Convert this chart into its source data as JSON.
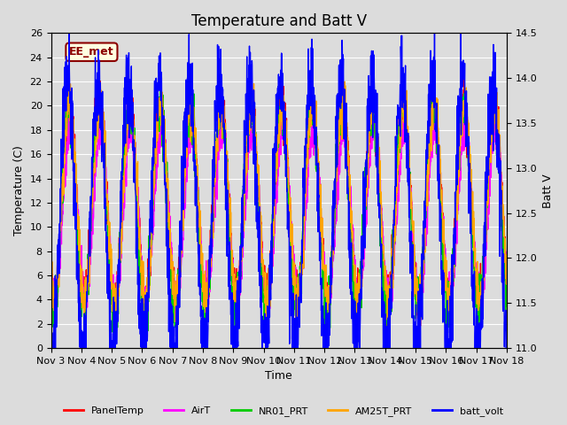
{
  "title": "Temperature and Batt V",
  "xlabel": "Time",
  "ylabel_left": "Temperature (C)",
  "ylabel_right": "Batt V",
  "ylim_left": [
    0,
    26
  ],
  "ylim_right": [
    11.0,
    14.5
  ],
  "yticks_left": [
    0,
    2,
    4,
    6,
    8,
    10,
    12,
    14,
    16,
    18,
    20,
    22,
    24,
    26
  ],
  "yticks_right": [
    11.0,
    11.5,
    12.0,
    12.5,
    13.0,
    13.5,
    14.0,
    14.5
  ],
  "xtick_labels": [
    "Nov 3",
    "Nov 4",
    "Nov 5",
    "Nov 6",
    "Nov 7",
    "Nov 8",
    "Nov 9",
    "Nov 10",
    "Nov 11",
    "Nov 12",
    "Nov 13",
    "Nov 14",
    "Nov 15",
    "Nov 16",
    "Nov 17",
    "Nov 18"
  ],
  "num_days": 15,
  "annotation_text": "EE_met",
  "annotation_color": "#8B0000",
  "annotation_bg": "#FFFFE0",
  "bg_color": "#DCDCDC",
  "series_colors": {
    "PanelTemp": "#FF0000",
    "AirT": "#FF00FF",
    "NR01_PRT": "#00CC00",
    "AM25T_PRT": "#FFA500",
    "batt_volt": "#0000FF"
  },
  "legend_labels": [
    "PanelTemp",
    "AirT",
    "NR01_PRT",
    "AM25T_PRT",
    "batt_volt"
  ],
  "line_width": 1.0,
  "grid_color": "#FFFFFF",
  "title_fontsize": 12,
  "axis_fontsize": 9,
  "tick_fontsize": 8
}
